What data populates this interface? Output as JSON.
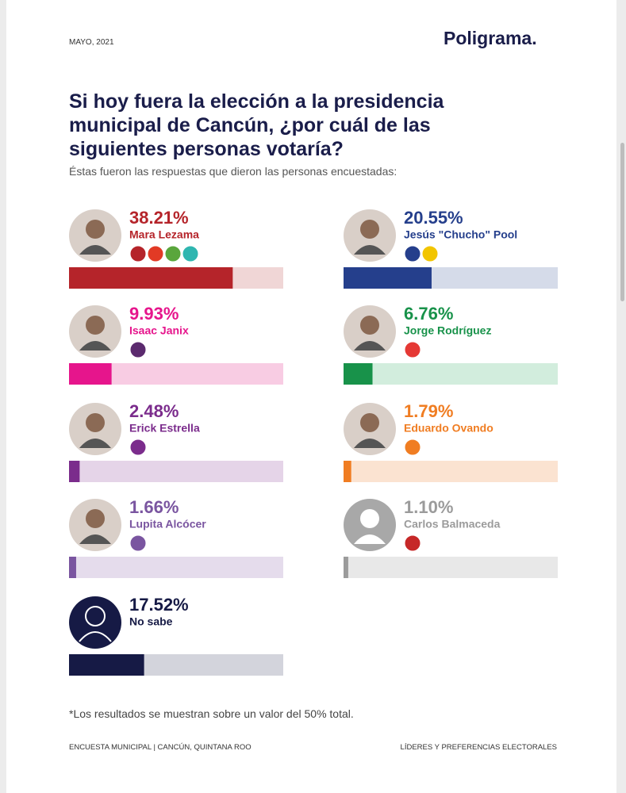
{
  "chart_data": {
    "type": "bar",
    "date": "MAYO, 2021",
    "brand": "Poligrama.",
    "title": "Si hoy fuera la elección a la presidencia municipal de Cancún, ¿por cuál de las siguientes personas votaría?",
    "subtitle": "Éstas fueron las respuestas que dieron las personas encuestadas:",
    "categories": [
      "Mara Lezama",
      "Jesús \"Chucho\" Pool",
      "Isaac Janix",
      "Jorge Rodríguez",
      "Erick Estrella",
      "Eduardo Ovando",
      "Lupita Alcócer",
      "Carlos Balmaceda",
      "No sabe"
    ],
    "values": [
      38.21,
      20.55,
      9.93,
      6.76,
      2.48,
      1.79,
      1.66,
      1.1,
      17.52
    ],
    "value_labels": [
      "38.21%",
      "20.55%",
      "9.93%",
      "6.76%",
      "2.48%",
      "1.79%",
      "1.66%",
      "1.10%",
      "17.52%"
    ],
    "colors": [
      "#b5242a",
      "#253f8c",
      "#e6158c",
      "#18924a",
      "#7b2c8c",
      "#f07d22",
      "#7a55a0",
      "#9b9b9b",
      "#161a45"
    ],
    "track_colors": [
      "#f0d6d6",
      "#d5dbe9",
      "#f8cce3",
      "#d2eddd",
      "#e5d4e8",
      "#fbe3d1",
      "#e5dcec",
      "#e8e8e8",
      "#d3d4dc"
    ],
    "xlim": [
      0,
      50
    ],
    "note": "*Los resultados se muestran sobre un valor del 50% total.",
    "footer_left": "ENCUESTA MUNICIPAL | CANCÚN, QUINTANA ROO",
    "footer_right": "LÍDERES Y PREFERENCIAS ELECTORALES"
  }
}
